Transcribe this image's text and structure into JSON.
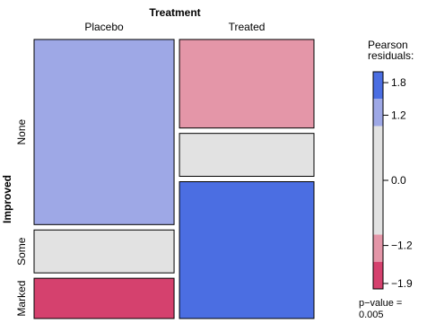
{
  "chart_data": {
    "type": "mosaic",
    "title": "Treatment",
    "column_variable": "Treatment",
    "row_variable": "Improved",
    "columns": [
      "Placebo",
      "Treated"
    ],
    "rows": [
      "None",
      "Some",
      "Marked"
    ],
    "cells": [
      {
        "column": "Placebo",
        "row": "None",
        "proportion": 0.69,
        "residual": 1.5,
        "color": "#9ea8e6"
      },
      {
        "column": "Placebo",
        "row": "Some",
        "proportion": 0.16,
        "residual": 0.3,
        "color": "#e2e2e2"
      },
      {
        "column": "Placebo",
        "row": "Marked",
        "proportion": 0.15,
        "residual": -2.0,
        "color": "#d5416e"
      },
      {
        "column": "Treated",
        "row": "None",
        "proportion": 0.33,
        "residual": -1.5,
        "color": "#e496a8"
      },
      {
        "column": "Treated",
        "row": "Some",
        "proportion": 0.16,
        "residual": -0.3,
        "color": "#e2e2e2"
      },
      {
        "column": "Treated",
        "row": "Marked",
        "proportion": 0.51,
        "residual": 2.0,
        "color": "#4b6ee2"
      }
    ],
    "column_proportions": [
      0.51,
      0.49
    ],
    "legend": {
      "title_line1": "Pearson",
      "title_line2": "residuals:",
      "range": [
        -2.0,
        2.0
      ],
      "ticks": [
        {
          "value": 1.8,
          "label": "1.8"
        },
        {
          "value": 1.2,
          "label": "1.2"
        },
        {
          "value": 0.0,
          "label": "0.0"
        },
        {
          "value": -1.2,
          "label": "−1.2"
        },
        {
          "value": -1.9,
          "label": "−1.9"
        }
      ],
      "bands": [
        {
          "from": 1.5,
          "to": 2.0,
          "color": "#4b6ee2"
        },
        {
          "from": 1.0,
          "to": 1.5,
          "color": "#9ea8e6"
        },
        {
          "from": -1.0,
          "to": 1.0,
          "color": "#e2e2e2"
        },
        {
          "from": -1.5,
          "to": -1.0,
          "color": "#e496a8"
        },
        {
          "from": -2.0,
          "to": -1.5,
          "color": "#d5416e"
        }
      ],
      "pvalue_line1": "p−value =",
      "pvalue_line2": "0.005"
    }
  }
}
